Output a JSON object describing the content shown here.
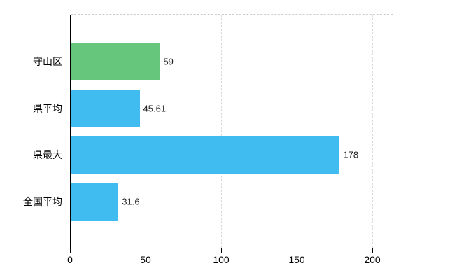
{
  "chart_data": {
    "type": "bar",
    "orientation": "horizontal",
    "title": "",
    "xlabel": "",
    "ylabel": "",
    "categories": [
      "守山区",
      "県平均",
      "県最大",
      "全国平均"
    ],
    "values": [
      59,
      45.61,
      178,
      31.6
    ],
    "value_labels": [
      "59",
      "45.61",
      "178",
      "31.6"
    ],
    "series": [
      {
        "name": "",
        "values": [
          59,
          45.61,
          178,
          31.6
        ],
        "bar_colors": [
          "#66c77c",
          "#40bcf0",
          "#40bcf0",
          "#40bcf0"
        ]
      }
    ],
    "x_ticks": [
      0,
      50,
      100,
      150,
      200
    ],
    "x_tick_labels": [
      "0",
      "50",
      "100",
      "150",
      "200"
    ],
    "xlim": [
      0,
      213
    ],
    "grid": true,
    "grid_style": {
      "vertical": "dashed",
      "horizontal": "solid"
    },
    "legend": false,
    "legend_position": "none"
  },
  "colors": {
    "highlight_bar": "#66c77c",
    "default_bar": "#40bcf0",
    "grid": "#e0e0e0",
    "axis": "#000000",
    "value_label": "#222222",
    "background": "#ffffff"
  }
}
